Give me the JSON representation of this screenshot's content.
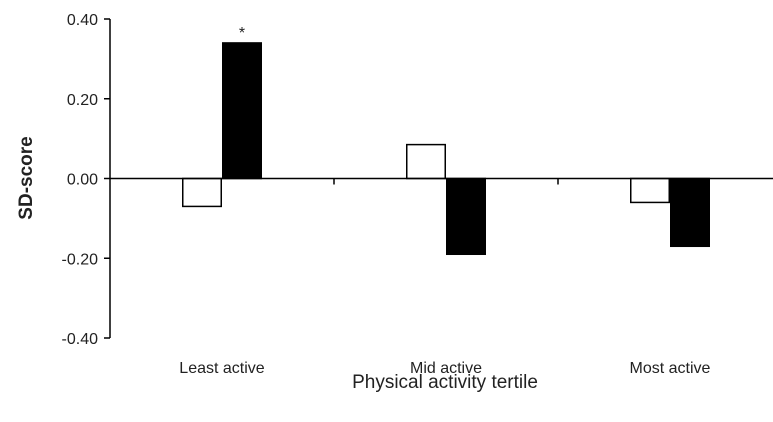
{
  "chart_data": {
    "type": "bar",
    "title": "",
    "xlabel": "Physical activity tertile",
    "ylabel": "SD-score",
    "categories": [
      "Least active",
      "Mid active",
      "Most active"
    ],
    "series": [
      {
        "color": "#ffffff",
        "stroke": "#000000",
        "values": [
          -0.07,
          0.085,
          -0.06
        ]
      },
      {
        "color": "#000000",
        "stroke": "#000000",
        "values": [
          0.34,
          -0.19,
          -0.17
        ]
      }
    ],
    "ylim": [
      -0.4,
      0.4
    ],
    "yticks": [
      0.4,
      0.2,
      0.0,
      -0.2,
      -0.4
    ],
    "ytick_labels": [
      "0.40",
      "0.20",
      "0.00",
      "-0.20",
      "-0.40"
    ],
    "grid": false,
    "annotations": [
      {
        "text": "*",
        "category_index": 0,
        "series_index": 1
      }
    ]
  }
}
